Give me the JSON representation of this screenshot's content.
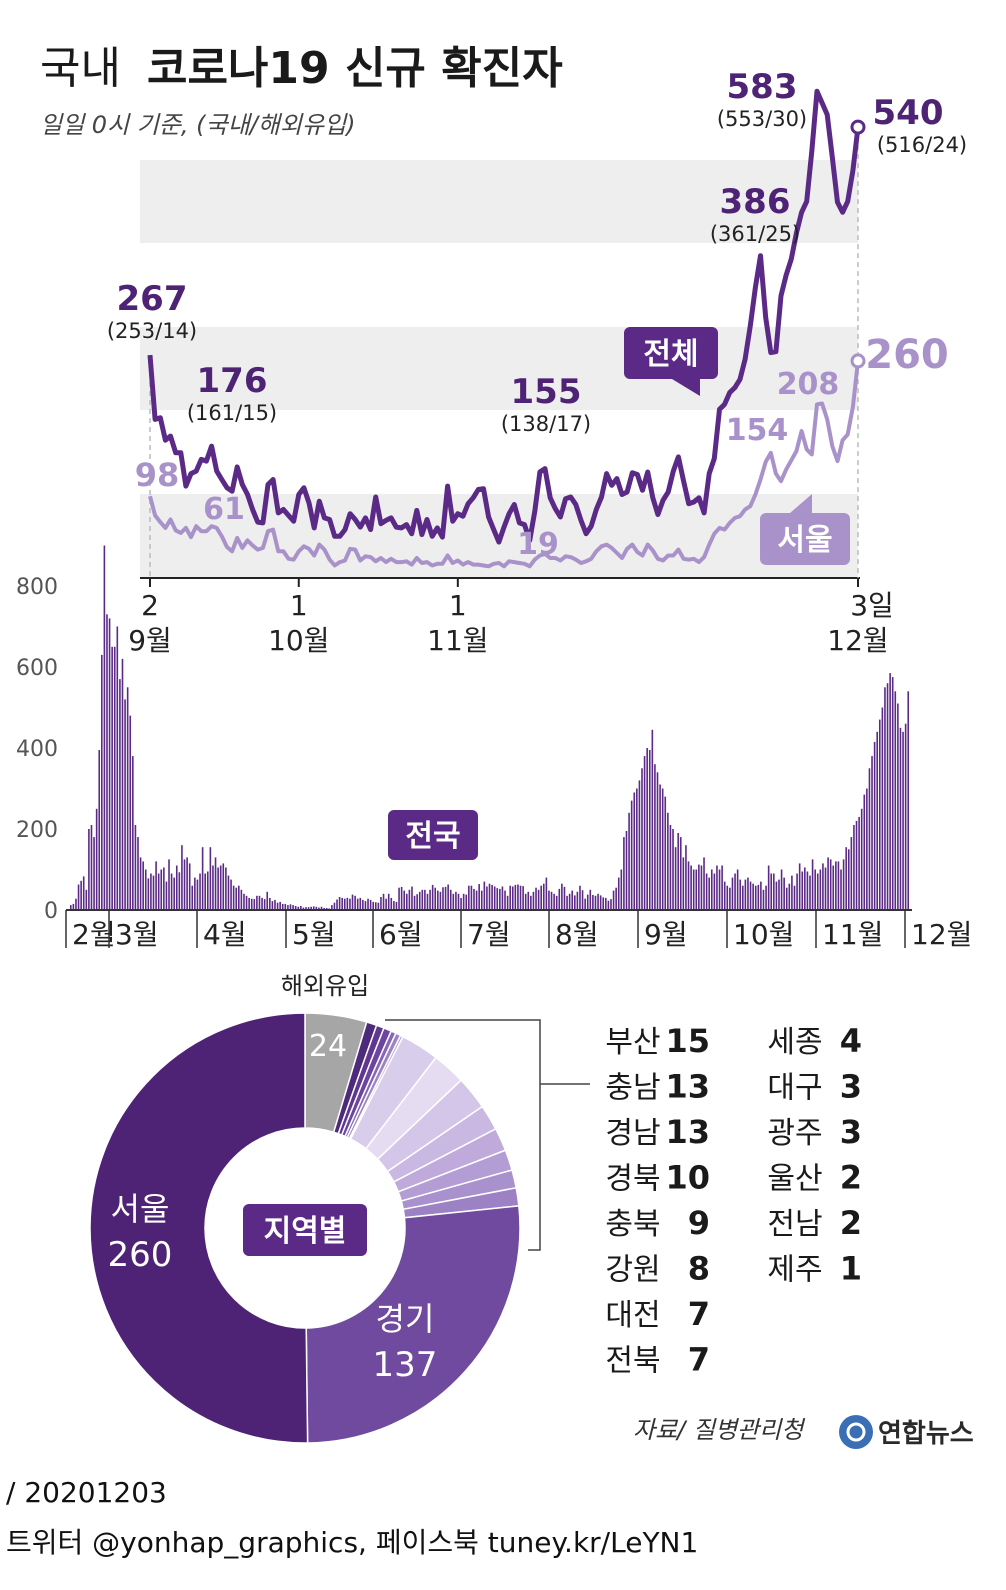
{
  "header": {
    "title_light": "국내",
    "title_bold": "코로나19 신규 확진자",
    "subtitle": "일일 0시 기준, (국내/해외유입)"
  },
  "colors": {
    "total": "#5b2a86",
    "seoul": "#a992c9",
    "dark": "#4e2375",
    "gray": "#a6a6a6",
    "band": "#eeeeee"
  },
  "chart_data": [
    {
      "type": "line",
      "name": "recent-daily",
      "x_ticks": [
        {
          "day": "2",
          "month": "9월"
        },
        {
          "day": "1",
          "month": "10월"
        },
        {
          "day": "1",
          "month": "11월"
        },
        {
          "day": "3일",
          "month": "12월"
        }
      ],
      "series": [
        {
          "name": "전체",
          "values": [
            267,
            190,
            192,
            165,
            170,
            150,
            150,
            110,
            125,
            128,
            142,
            140,
            158,
            128,
            118,
            108,
            104,
            133,
            112,
            100,
            82,
            67,
            66,
            112,
            118,
            78,
            82,
            75,
            68,
            100,
            108,
            90,
            60,
            92,
            72,
            70,
            50,
            50,
            58,
            77,
            70,
            61,
            72,
            58,
            97,
            65,
            69,
            72,
            61,
            60,
            64,
            53,
            81,
            52,
            70,
            50,
            60,
            49,
            110,
            68,
            77,
            74,
            89,
            96,
            106,
            107,
            73,
            58,
            43,
            61,
            77,
            88,
            66,
            64,
            45,
            80,
            127,
            131,
            96,
            83,
            73,
            95,
            97,
            88,
            69,
            53,
            62,
            82,
            97,
            125,
            111,
            119,
            100,
            103,
            126,
            124,
            105,
            127,
            96,
            76,
            93,
            103,
            128,
            145,
            116,
            89,
            91,
            96,
            78,
            125,
            143,
            202,
            208,
            222,
            228,
            238,
            262,
            302,
            348,
            386,
            312,
            270,
            271,
            338,
            363,
            382,
            413,
            438,
            451,
            511,
            583,
            569,
            555,
            504,
            450,
            438,
            451,
            488,
            540
          ]
        },
        {
          "name": "서울",
          "values": [
            98,
            75,
            67,
            60,
            70,
            57,
            54,
            60,
            49,
            62,
            56,
            56,
            62,
            60,
            50,
            37,
            32,
            48,
            36,
            45,
            39,
            34,
            36,
            56,
            58,
            32,
            32,
            23,
            22,
            32,
            38,
            35,
            27,
            40,
            34,
            22,
            15,
            19,
            21,
            35,
            34,
            21,
            26,
            25,
            20,
            24,
            19,
            23,
            19,
            19,
            20,
            16,
            24,
            18,
            19,
            15,
            17,
            17,
            27,
            18,
            21,
            16,
            19,
            16,
            16,
            15,
            14,
            17,
            18,
            14,
            20,
            19,
            18,
            17,
            14,
            22,
            27,
            29,
            24,
            24,
            21,
            26,
            25,
            22,
            18,
            20,
            23,
            32,
            38,
            40,
            36,
            30,
            24,
            35,
            40,
            31,
            27,
            40,
            33,
            23,
            21,
            27,
            27,
            34,
            23,
            22,
            23,
            19,
            25,
            40,
            53,
            60,
            58,
            66,
            72,
            74,
            82,
            86,
            100,
            118,
            139,
            150,
            125,
            116,
            130,
            141,
            152,
            176,
            154,
            148,
            208,
            209,
            190,
            158,
            140,
            165,
            172,
            205,
            260
          ]
        }
      ],
      "annotations": [
        {
          "value": "267",
          "detail": "(253/14)"
        },
        {
          "value": "176",
          "detail": "(161/15)"
        },
        {
          "value": "155",
          "detail": "(138/17)"
        },
        {
          "value": "386",
          "detail": "(361/25)"
        },
        {
          "value": "583",
          "detail": "(553/30)"
        },
        {
          "value": "540",
          "detail": "(516/24)"
        }
      ],
      "seoul_annotations": [
        "98",
        "61",
        "19",
        "154",
        "208",
        "260"
      ],
      "labels": {
        "total": "전체",
        "seoul": "서울"
      }
    },
    {
      "type": "bar",
      "name": "nationwide-daily",
      "label": "전국",
      "y_ticks": [
        "0",
        "200",
        "400",
        "600",
        "800"
      ],
      "ylim": [
        0,
        800
      ],
      "x_ticks": [
        "2월",
        "3월",
        "4월",
        "5월",
        "6월",
        "7월",
        "8월",
        "9월",
        "10월",
        "11월",
        "12월"
      ],
      "values": [
        12,
        15,
        28,
        63,
        72,
        83,
        50,
        200,
        210,
        180,
        250,
        395,
        630,
        900,
        730,
        720,
        650,
        650,
        700,
        570,
        620,
        520,
        550,
        480,
        380,
        210,
        180,
        130,
        120,
        100,
        78,
        90,
        85,
        120,
        90,
        100,
        105,
        70,
        125,
        90,
        80,
        110,
        93,
        160,
        125,
        130,
        115,
        60,
        80,
        75,
        90,
        155,
        90,
        95,
        155,
        110,
        130,
        105,
        110,
        115,
        105,
        85,
        75,
        60,
        55,
        60,
        50,
        40,
        35,
        30,
        28,
        27,
        35,
        35,
        30,
        27,
        45,
        30,
        22,
        25,
        18,
        20,
        15,
        15,
        12,
        14,
        12,
        10,
        8,
        10,
        6,
        7,
        7,
        8,
        9,
        8,
        6,
        8,
        5,
        5,
        4,
        12,
        18,
        26,
        32,
        30,
        28,
        30,
        28,
        38,
        35,
        28,
        30,
        25,
        22,
        28,
        25,
        20,
        19,
        18,
        32,
        40,
        28,
        40,
        30,
        22,
        20,
        55,
        57,
        48,
        40,
        50,
        58,
        35,
        39,
        45,
        50,
        50,
        40,
        50,
        62,
        55,
        48,
        45,
        56,
        57,
        63,
        50,
        40,
        45,
        40,
        30,
        40,
        38,
        60,
        60,
        52,
        48,
        64,
        48,
        70,
        58,
        65,
        62,
        58,
        54,
        52,
        58,
        48,
        35,
        60,
        58,
        62,
        63,
        60,
        59,
        40,
        45,
        35,
        45,
        55,
        50,
        60,
        65,
        80,
        48,
        45,
        40,
        35,
        52,
        65,
        57,
        35,
        40,
        48,
        36,
        45,
        60,
        49,
        28,
        38,
        50,
        37,
        35,
        40,
        36,
        31,
        30,
        23,
        27,
        48,
        55,
        80,
        100,
        180,
        195,
        240,
        270,
        290,
        300,
        320,
        350,
        380,
        400,
        395,
        445,
        360,
        340,
        310,
        300,
        280,
        240,
        210,
        200,
        155,
        190,
        180,
        130,
        160,
        120,
        110,
        100,
        100,
        112,
        110,
        130,
        90,
        80,
        100,
        90,
        110,
        100,
        110,
        70,
        60,
        55,
        80,
        90,
        100,
        75,
        60,
        75,
        80,
        70,
        65,
        60,
        62,
        70,
        50,
        60,
        110,
        90,
        90,
        70,
        75,
        100,
        80,
        55,
        65,
        85,
        60,
        90,
        115,
        95,
        105,
        95,
        85,
        125,
        100,
        90,
        100,
        115,
        105,
        130,
        125,
        110,
        120,
        120,
        100,
        125,
        155,
        150,
        180,
        210,
        220,
        230,
        250,
        285,
        300,
        350,
        380,
        415,
        440,
        470,
        500,
        550,
        560,
        585,
        575,
        540,
        510,
        450,
        440,
        460,
        540
      ]
    },
    {
      "type": "pie",
      "name": "by-region",
      "center_label": "지역별",
      "slices": [
        {
          "label": "해외유입",
          "value": 24
        },
        {
          "label": "세종",
          "value": 4
        },
        {
          "label": "대구",
          "value": 3
        },
        {
          "label": "광주",
          "value": 3
        },
        {
          "label": "울산",
          "value": 2
        },
        {
          "label": "전남",
          "value": 2
        },
        {
          "label": "제주",
          "value": 1
        },
        {
          "label": "부산",
          "value": 15
        },
        {
          "label": "충남",
          "value": 13
        },
        {
          "label": "경남",
          "value": 13
        },
        {
          "label": "경북",
          "value": 10
        },
        {
          "label": "충북",
          "value": 9
        },
        {
          "label": "강원",
          "value": 8
        },
        {
          "label": "대전",
          "value": 7
        },
        {
          "label": "전북",
          "value": 7
        },
        {
          "label": "경기",
          "value": 137
        },
        {
          "label": "서울",
          "value": 260
        }
      ],
      "legend": [
        {
          "label": "부산",
          "value": "15"
        },
        {
          "label": "충남",
          "value": "13"
        },
        {
          "label": "경남",
          "value": "13"
        },
        {
          "label": "경북",
          "value": "10"
        },
        {
          "label": "충북",
          "value": "9"
        },
        {
          "label": "강원",
          "value": "8"
        },
        {
          "label": "대전",
          "value": "7"
        },
        {
          "label": "전북",
          "value": "7"
        },
        {
          "label": "세종",
          "value": "4"
        },
        {
          "label": "대구",
          "value": "3"
        },
        {
          "label": "광주",
          "value": "3"
        },
        {
          "label": "울산",
          "value": "2"
        },
        {
          "label": "전남",
          "value": "2"
        },
        {
          "label": "제주",
          "value": "1"
        }
      ],
      "callouts": [
        {
          "label": "해외유입",
          "value": "24"
        },
        {
          "label": "서울",
          "value": "260"
        },
        {
          "label": "경기",
          "value": "137"
        }
      ]
    }
  ],
  "footer": {
    "source": "자료/ 질병관리청",
    "brand": "연합뉴스",
    "date": "/ 20201203",
    "social": "트위터 @yonhap_graphics, 페이스북 tuney.kr/LeYN1"
  }
}
